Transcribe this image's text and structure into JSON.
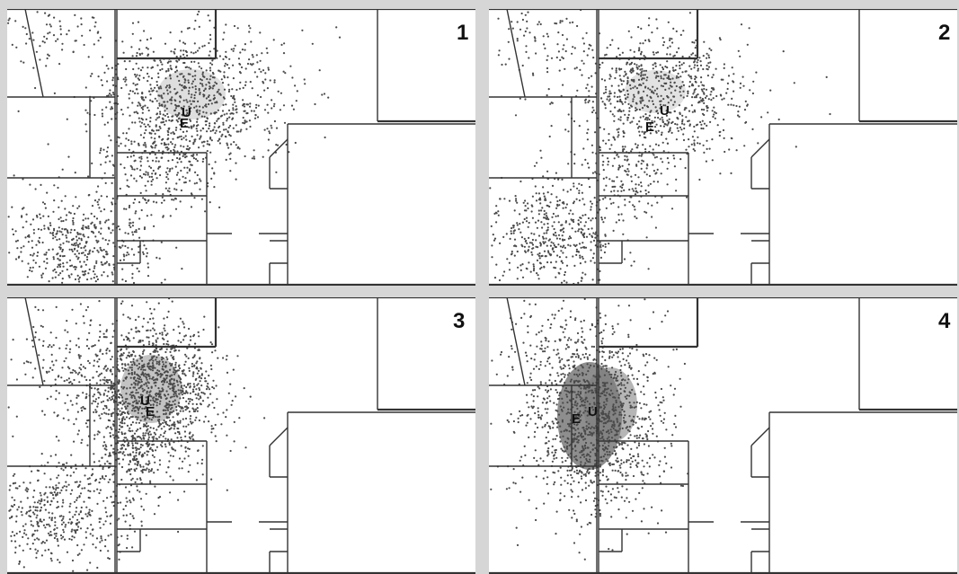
{
  "panels": [
    {
      "number": "1",
      "marker_u": "U",
      "marker_e": "E",
      "clusters": [
        {
          "region": "upper-center",
          "density": "high"
        },
        {
          "region": "lower-left",
          "density": "high"
        },
        {
          "region": "upper-left",
          "density": "low"
        }
      ]
    },
    {
      "number": "2",
      "marker_u": "U",
      "marker_e": "E",
      "clusters": [
        {
          "region": "upper-center",
          "density": "high"
        },
        {
          "region": "lower-left",
          "density": "high"
        },
        {
          "region": "upper-left",
          "density": "low"
        }
      ]
    },
    {
      "number": "3",
      "marker_u": "U",
      "marker_e": "E",
      "clusters": [
        {
          "region": "upper-center",
          "density": "very-high"
        },
        {
          "region": "lower-left",
          "density": "high"
        },
        {
          "region": "upper-left",
          "density": "medium"
        }
      ]
    },
    {
      "number": "4",
      "marker_u": "U",
      "marker_e": "E",
      "clusters": [
        {
          "region": "center",
          "density": "saturated"
        },
        {
          "region": "upper-left",
          "density": "low"
        }
      ]
    }
  ],
  "colors": {
    "background": "#d6d6d6",
    "panel": "#ffffff",
    "walls": "#333333",
    "dots": "#4a4a4a",
    "dense_fill": "#7a7a7a"
  }
}
